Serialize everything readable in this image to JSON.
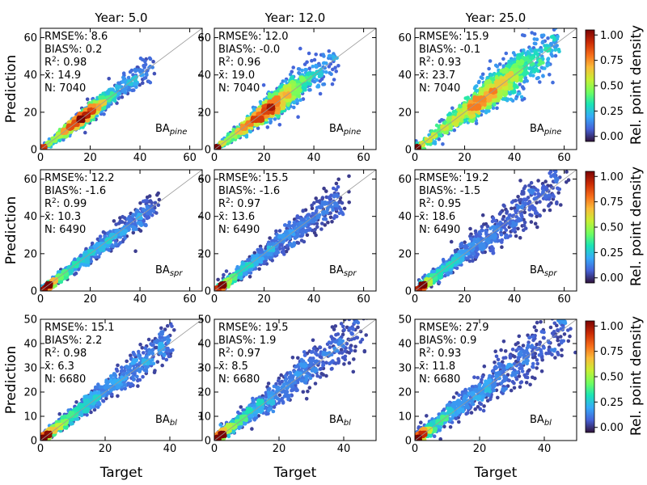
{
  "figure": {
    "x_label": "Target",
    "y_label": "Prediction",
    "colorbar_label": "Rel. point density",
    "colorbar_ticks": [
      "0.00",
      "0.25",
      "0.50",
      "0.75",
      "1.00"
    ],
    "colorbar_stops": [
      "#30123b",
      "#4662d7",
      "#36aaf9",
      "#1ae4b6",
      "#72fe5e",
      "#c8ef34",
      "#faba39",
      "#f66b19",
      "#ca2a04",
      "#7a0403"
    ],
    "point_color_low": "#3b4cc0",
    "identity_line_color": "#999999"
  },
  "chart_data": [
    {
      "type": "scatter",
      "row": 0,
      "col": 0,
      "title": "Year: 5.0",
      "species_base": "BA",
      "species_sub": "pine",
      "stats": {
        "rmse": "8.6",
        "bias": "0.2",
        "r2": "0.98",
        "xbar": "14.9",
        "n": "7040"
      },
      "xlim": [
        0,
        65
      ],
      "ylim": [
        0,
        65
      ],
      "xticks": [
        0,
        20,
        40,
        60
      ],
      "yticks": [
        0,
        20,
        40,
        60
      ],
      "cloud": {
        "n": 1500,
        "center": 17,
        "shape": 1.8,
        "max": 46,
        "spread": 0.1,
        "bias": 0,
        "outlier_rate": 0.005,
        "seed": 11
      }
    },
    {
      "type": "scatter",
      "row": 0,
      "col": 1,
      "title": "Year: 12.0",
      "species_base": "BA",
      "species_sub": "pine",
      "stats": {
        "rmse": "12.0",
        "bias": "-0.0",
        "r2": "0.96",
        "xbar": "19.0",
        "n": "7040"
      },
      "xlim": [
        0,
        65
      ],
      "ylim": [
        0,
        65
      ],
      "xticks": [
        0,
        20,
        40,
        60
      ],
      "yticks": [
        0,
        20,
        40,
        60
      ],
      "cloud": {
        "n": 1500,
        "center": 23,
        "shape": 2.0,
        "max": 50,
        "spread": 0.14,
        "bias": 0,
        "outlier_rate": 0.02,
        "seed": 23
      }
    },
    {
      "type": "scatter",
      "row": 0,
      "col": 2,
      "title": "Year: 25.0",
      "species_base": "BA",
      "species_sub": "pine",
      "stats": {
        "rmse": "15.9",
        "bias": "-0.1",
        "r2": "0.93",
        "xbar": "23.7",
        "n": "7040"
      },
      "xlim": [
        0,
        65
      ],
      "ylim": [
        0,
        65
      ],
      "xticks": [
        0,
        20,
        40,
        60
      ],
      "yticks": [
        0,
        20,
        40,
        60
      ],
      "cloud": {
        "n": 1500,
        "center": 31,
        "shape": 2.2,
        "max": 58,
        "spread": 0.16,
        "bias": 0,
        "outlier_rate": 0.04,
        "seed": 37
      }
    },
    {
      "type": "scatter",
      "row": 1,
      "col": 0,
      "title": "",
      "species_base": "BA",
      "species_sub": "spr",
      "stats": {
        "rmse": "12.2",
        "bias": "-1.6",
        "r2": "0.99",
        "xbar": "10.3",
        "n": "6490"
      },
      "xlim": [
        0,
        65
      ],
      "ylim": [
        0,
        65
      ],
      "xticks": [
        0,
        20,
        40,
        60
      ],
      "yticks": [
        0,
        20,
        40,
        60
      ],
      "cloud": {
        "n": 1300,
        "center": 3,
        "shape": 0.6,
        "max": 48,
        "spread": 0.1,
        "bias": -0.5,
        "outlier_rate": 0.003,
        "seed": 41
      }
    },
    {
      "type": "scatter",
      "row": 1,
      "col": 1,
      "title": "",
      "species_base": "BA",
      "species_sub": "spr",
      "stats": {
        "rmse": "15.5",
        "bias": "-1.6",
        "r2": "0.97",
        "xbar": "13.6",
        "n": "6490"
      },
      "xlim": [
        0,
        65
      ],
      "ylim": [
        0,
        65
      ],
      "xticks": [
        0,
        20,
        40,
        60
      ],
      "yticks": [
        0,
        20,
        40,
        60
      ],
      "cloud": {
        "n": 1300,
        "center": 3,
        "shape": 0.6,
        "max": 55,
        "spread": 0.13,
        "bias": -0.5,
        "outlier_rate": 0.01,
        "seed": 53
      }
    },
    {
      "type": "scatter",
      "row": 1,
      "col": 2,
      "title": "",
      "species_base": "BA",
      "species_sub": "spr",
      "stats": {
        "rmse": "19.2",
        "bias": "-1.5",
        "r2": "0.95",
        "xbar": "18.6",
        "n": "6490"
      },
      "xlim": [
        0,
        65
      ],
      "ylim": [
        0,
        65
      ],
      "xticks": [
        0,
        20,
        40,
        60
      ],
      "yticks": [
        0,
        20,
        40,
        60
      ],
      "cloud": {
        "n": 1300,
        "center": 3,
        "shape": 0.6,
        "max": 62,
        "spread": 0.16,
        "bias": -0.5,
        "outlier_rate": 0.03,
        "seed": 67
      }
    },
    {
      "type": "scatter",
      "row": 2,
      "col": 0,
      "title": "",
      "species_base": "BA",
      "species_sub": "bl",
      "stats": {
        "rmse": "15.1",
        "bias": "2.2",
        "r2": "0.98",
        "xbar": "6.3",
        "n": "6680"
      },
      "xlim": [
        0,
        50
      ],
      "ylim": [
        0,
        50
      ],
      "xticks": [
        0,
        20,
        40
      ],
      "yticks": [
        0,
        10,
        20,
        30,
        40,
        50
      ],
      "cloud": {
        "n": 1300,
        "center": 1.5,
        "shape": 0.5,
        "max": 42,
        "spread": 0.12,
        "bias": 0.4,
        "outlier_rate": 0.003,
        "seed": 71
      }
    },
    {
      "type": "scatter",
      "row": 2,
      "col": 1,
      "title": "",
      "species_base": "BA",
      "species_sub": "bl",
      "stats": {
        "rmse": "19.5",
        "bias": "1.9",
        "r2": "0.97",
        "xbar": "8.5",
        "n": "6680"
      },
      "xlim": [
        0,
        50
      ],
      "ylim": [
        0,
        50
      ],
      "xticks": [
        0,
        20,
        40
      ],
      "yticks": [
        0,
        10,
        20,
        30,
        40,
        50
      ],
      "cloud": {
        "n": 1300,
        "center": 1.5,
        "shape": 0.5,
        "max": 48,
        "spread": 0.15,
        "bias": 0.4,
        "outlier_rate": 0.01,
        "seed": 83
      }
    },
    {
      "type": "scatter",
      "row": 2,
      "col": 2,
      "title": "",
      "species_base": "BA",
      "species_sub": "bl",
      "stats": {
        "rmse": "27.9",
        "bias": "0.9",
        "r2": "0.93",
        "xbar": "11.8",
        "n": "6680"
      },
      "xlim": [
        0,
        50
      ],
      "ylim": [
        0,
        50
      ],
      "xticks": [
        0,
        20,
        40
      ],
      "yticks": [
        0,
        10,
        20,
        30,
        40,
        50
      ],
      "cloud": {
        "n": 1300,
        "center": 1.5,
        "shape": 0.5,
        "max": 50,
        "spread": 0.18,
        "bias": 0.3,
        "outlier_rate": 0.04,
        "seed": 97
      }
    }
  ]
}
